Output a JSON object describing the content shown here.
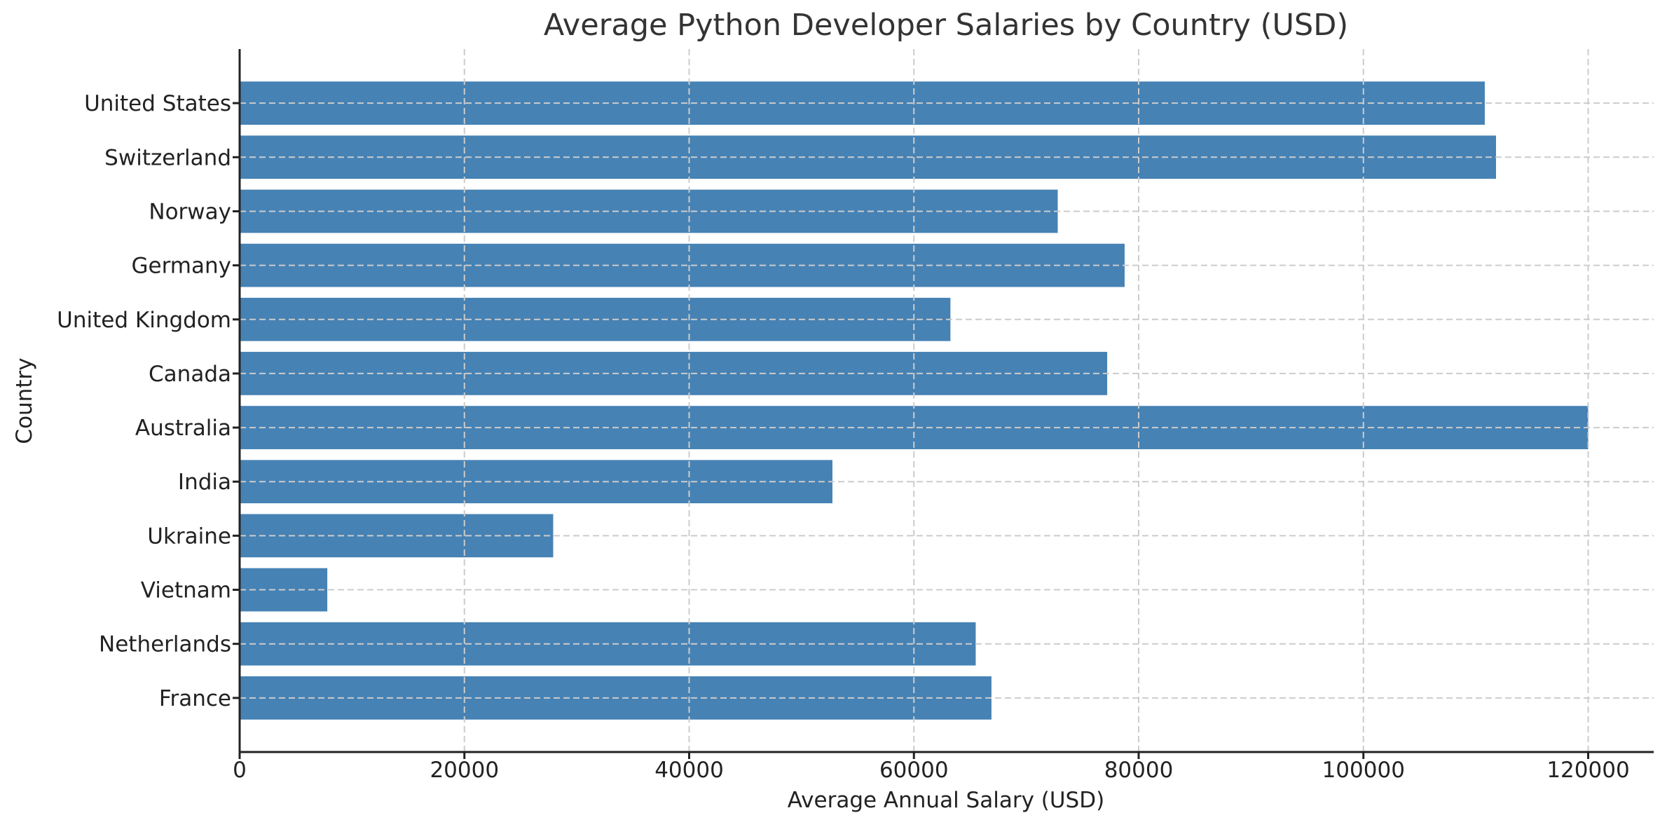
{
  "chart_data": {
    "type": "bar",
    "orientation": "horizontal",
    "title": "Average Python Developer Salaries by Country (USD)",
    "xlabel": "Average Annual Salary (USD)",
    "ylabel": "Country",
    "categories": [
      "United States",
      "Switzerland",
      "Norway",
      "Germany",
      "United Kingdom",
      "Canada",
      "Australia",
      "India",
      "Ukraine",
      "Vietnam",
      "Netherlands",
      "France"
    ],
    "values": [
      110800,
      111800,
      72800,
      78750,
      63250,
      77200,
      120000,
      52750,
      27900,
      7800,
      65500,
      66900
    ],
    "xlim": [
      0,
      126000
    ],
    "xticks": [
      0,
      20000,
      40000,
      60000,
      80000,
      100000,
      120000
    ],
    "xtick_labels": [
      "0",
      "20000",
      "40000",
      "60000",
      "80000",
      "100000",
      "120000"
    ],
    "grid": true,
    "grid_style": "dashed",
    "bar_color": "#4682b4",
    "legend": null
  }
}
